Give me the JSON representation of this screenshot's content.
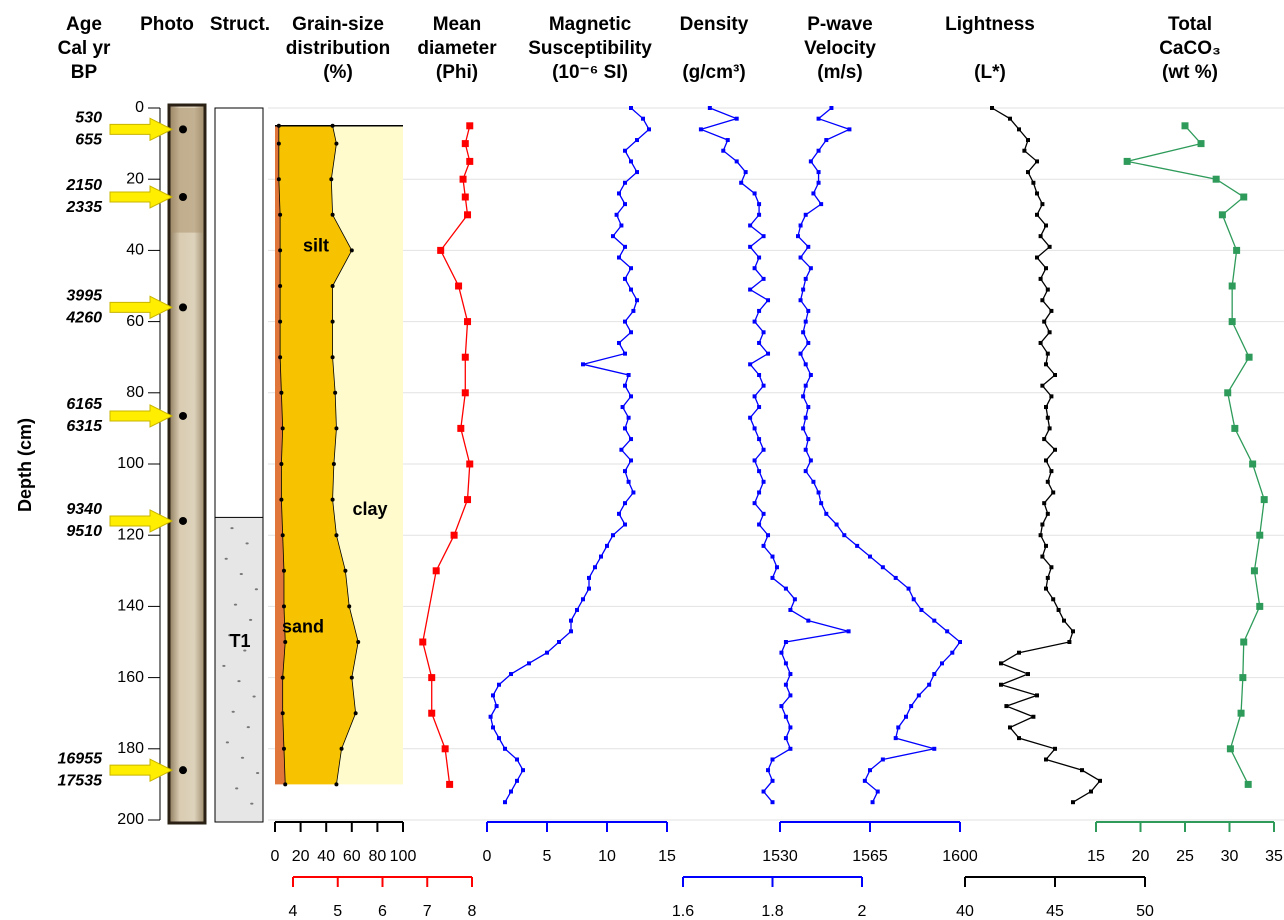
{
  "age_column": {
    "header": [
      "Age",
      "Cal yr",
      "BP"
    ],
    "labels": [
      [
        "530",
        "655"
      ],
      [
        "2150",
        "2335"
      ],
      [
        "3995",
        "4260"
      ],
      [
        "6165",
        "6315"
      ],
      [
        "9340",
        "9510"
      ],
      [
        "16955",
        "17535"
      ]
    ]
  },
  "photo": {
    "header": [
      "Photo"
    ]
  },
  "structure": {
    "header": [
      "Struct."
    ],
    "unit_label": "T1"
  },
  "depth": {
    "label": "Depth (cm)",
    "ylim": [
      0,
      200
    ],
    "yticks": [
      0,
      20,
      40,
      60,
      80,
      100,
      120,
      140,
      160,
      180,
      200
    ]
  },
  "chart_data": [
    {
      "type": "area",
      "header": [
        "Grain-size",
        "distribution",
        "(%)"
      ],
      "xlim": [
        0,
        100
      ],
      "xticks": [
        0,
        20,
        40,
        60,
        80,
        100
      ],
      "y": [
        5,
        10,
        20,
        30,
        40,
        50,
        60,
        70,
        80,
        90,
        100,
        110,
        120,
        130,
        140,
        150,
        160,
        170,
        180,
        190
      ],
      "series": [
        {
          "name": "sand",
          "color": "#e0763a",
          "values": [
            3,
            3,
            3,
            4,
            4,
            4,
            4,
            4,
            5,
            6,
            5,
            5,
            6,
            7,
            7,
            8,
            6,
            6,
            7,
            8
          ]
        },
        {
          "name": "silt",
          "color": "#f7c200",
          "values": [
            42,
            45,
            41,
            41,
            56,
            41,
            41,
            41,
            42,
            42,
            41,
            40,
            42,
            48,
            51,
            57,
            54,
            57,
            45,
            40
          ]
        }
      ],
      "remainder": {
        "name": "clay",
        "color": "#fffbcc"
      }
    },
    {
      "type": "line",
      "header": [
        "Mean",
        "diameter",
        "(Phi)"
      ],
      "color": "#ff0000",
      "marker": "big",
      "xlim": [
        4,
        8
      ],
      "xticks": [
        4,
        5,
        6,
        7,
        8
      ],
      "y": [
        5,
        10,
        15,
        20,
        25,
        30,
        40,
        50,
        60,
        70,
        80,
        90,
        100,
        110,
        120,
        130,
        150,
        160,
        170,
        180,
        190
      ],
      "values": [
        7.95,
        7.85,
        7.95,
        7.8,
        7.85,
        7.9,
        7.3,
        7.7,
        7.9,
        7.85,
        7.85,
        7.75,
        7.95,
        7.9,
        7.6,
        7.2,
        6.9,
        7.1,
        7.1,
        7.4,
        7.5
      ]
    },
    {
      "type": "line",
      "header": [
        "Magnetic",
        "Susceptibility",
        "(10⁻⁶ SI)"
      ],
      "color": "#0000ff",
      "marker": "small",
      "xlim": [
        0,
        15
      ],
      "xticks": [
        0,
        5,
        10,
        15
      ],
      "y": [
        0,
        3,
        6,
        9,
        12,
        15,
        18,
        21,
        24,
        27,
        30,
        33,
        36,
        39,
        42,
        45,
        48,
        51,
        54,
        57,
        60,
        63,
        66,
        69,
        72,
        75,
        78,
        81,
        84,
        87,
        90,
        93,
        96,
        99,
        102,
        105,
        108,
        111,
        114,
        117,
        120,
        123,
        126,
        129,
        132,
        135,
        138,
        141,
        144,
        147,
        150,
        153,
        156,
        159,
        162,
        165,
        168,
        171,
        174,
        177,
        180,
        183,
        186,
        189,
        192,
        195
      ],
      "values": [
        12,
        13,
        13.5,
        12.5,
        11.5,
        12,
        12.5,
        11.5,
        11,
        11.5,
        10.8,
        11.2,
        10.5,
        11.5,
        11,
        12,
        11.5,
        12,
        12.5,
        12.2,
        11.5,
        12,
        11,
        11.5,
        8,
        11.8,
        11.5,
        12,
        11.3,
        11.8,
        11.5,
        12,
        11.2,
        12,
        11.5,
        11.8,
        12.2,
        11.5,
        11,
        11.5,
        10.5,
        10,
        9.5,
        9,
        8.5,
        8.5,
        8,
        7.5,
        7,
        7,
        6,
        5,
        3.5,
        2,
        1,
        0.5,
        0.8,
        0.3,
        0.5,
        1,
        1.5,
        2.5,
        3,
        2.5,
        2,
        1.5
      ]
    },
    {
      "type": "line",
      "header": [
        "Density",
        "(g/cm³)"
      ],
      "color": "#0000ff",
      "marker": "small",
      "xlim": [
        1.6,
        2
      ],
      "xticks": [
        1.6,
        1.8,
        2
      ],
      "y": [
        0,
        3,
        6,
        9,
        12,
        15,
        18,
        21,
        24,
        27,
        30,
        33,
        36,
        39,
        42,
        45,
        48,
        51,
        54,
        57,
        60,
        63,
        66,
        69,
        72,
        75,
        78,
        81,
        84,
        87,
        90,
        93,
        96,
        99,
        102,
        105,
        108,
        111,
        114,
        117,
        120,
        123,
        126,
        129,
        132,
        135,
        138,
        141,
        144,
        147,
        150,
        153,
        156,
        159,
        162,
        165,
        168,
        171,
        174,
        177,
        180,
        183,
        186,
        189,
        192,
        195
      ],
      "values": [
        1.66,
        1.72,
        1.64,
        1.7,
        1.69,
        1.72,
        1.74,
        1.73,
        1.76,
        1.77,
        1.77,
        1.75,
        1.78,
        1.75,
        1.77,
        1.76,
        1.78,
        1.75,
        1.79,
        1.77,
        1.76,
        1.78,
        1.77,
        1.79,
        1.75,
        1.77,
        1.78,
        1.76,
        1.77,
        1.75,
        1.76,
        1.77,
        1.78,
        1.76,
        1.77,
        1.78,
        1.77,
        1.76,
        1.78,
        1.77,
        1.79,
        1.78,
        1.8,
        1.81,
        1.8,
        1.83,
        1.85,
        1.84,
        1.88,
        1.97,
        1.83,
        1.82,
        1.83,
        1.84,
        1.83,
        1.84,
        1.82,
        1.83,
        1.84,
        1.83,
        1.84,
        1.8,
        1.79,
        1.8,
        1.78,
        1.8
      ]
    },
    {
      "type": "line",
      "header": [
        "P-wave",
        "Velocity",
        "(m/s)"
      ],
      "color": "#0000ff",
      "marker": "small",
      "xlim": [
        1530,
        1600
      ],
      "xticks": [
        1530,
        1565,
        1600
      ],
      "y": [
        0,
        3,
        6,
        9,
        12,
        15,
        18,
        21,
        24,
        27,
        30,
        33,
        36,
        39,
        42,
        45,
        48,
        51,
        54,
        57,
        60,
        63,
        66,
        69,
        72,
        75,
        78,
        81,
        84,
        87,
        90,
        93,
        96,
        99,
        102,
        105,
        108,
        111,
        114,
        117,
        120,
        123,
        126,
        129,
        132,
        135,
        138,
        141,
        144,
        147,
        150,
        153,
        156,
        159,
        162,
        165,
        168,
        171,
        174,
        177,
        180,
        183,
        186,
        189,
        192,
        195
      ],
      "values": [
        1550,
        1545,
        1557,
        1548,
        1545,
        1542,
        1545,
        1545,
        1543,
        1546,
        1540,
        1538,
        1537,
        1541,
        1538,
        1542,
        1540,
        1539,
        1538,
        1541,
        1540,
        1539,
        1541,
        1538,
        1540,
        1542,
        1540,
        1539,
        1541,
        1540,
        1539,
        1541,
        1540,
        1542,
        1540,
        1543,
        1545,
        1546,
        1548,
        1552,
        1555,
        1560,
        1565,
        1570,
        1575,
        1580,
        1582,
        1585,
        1590,
        1595,
        1600,
        1597,
        1593,
        1590,
        1588,
        1584,
        1581,
        1579,
        1576,
        1575,
        1590,
        1570,
        1565,
        1563,
        1568,
        1566
      ]
    },
    {
      "type": "line",
      "header": [
        "Lightness",
        "(L*)"
      ],
      "color": "#000000",
      "marker": "small",
      "xlim": [
        40,
        50
      ],
      "xticks": [
        40,
        45,
        50
      ],
      "y": [
        0,
        3,
        6,
        9,
        12,
        15,
        18,
        21,
        24,
        27,
        30,
        33,
        36,
        39,
        42,
        45,
        48,
        51,
        54,
        57,
        60,
        63,
        66,
        69,
        72,
        75,
        78,
        81,
        84,
        87,
        90,
        93,
        96,
        99,
        102,
        105,
        108,
        111,
        114,
        117,
        120,
        123,
        126,
        129,
        132,
        135,
        138,
        141,
        144,
        147,
        150,
        153,
        156,
        159,
        162,
        165,
        168,
        171,
        174,
        177,
        180,
        183,
        186,
        189,
        192,
        195
      ],
      "values": [
        41.5,
        42.5,
        43,
        43.5,
        43.3,
        44,
        43.5,
        43.8,
        44,
        44.3,
        44,
        44.5,
        44.2,
        44.7,
        44,
        44.5,
        44.2,
        44.6,
        44.3,
        44.8,
        44.4,
        44.7,
        44.2,
        44.6,
        44.5,
        45,
        44.3,
        44.8,
        44.5,
        44.6,
        44.7,
        44.4,
        45,
        44.5,
        44.8,
        44.6,
        44.9,
        44.4,
        44.6,
        44.3,
        44.2,
        44.5,
        44.3,
        44.8,
        44.6,
        44.5,
        44.9,
        45.2,
        45.5,
        46,
        45.8,
        43,
        42,
        43.5,
        42,
        44,
        42.3,
        43.8,
        42.5,
        43,
        45,
        44.5,
        46.5,
        47.5,
        47,
        46
      ]
    },
    {
      "type": "line",
      "header": [
        "Total",
        "CaCO₃",
        "(wt %)"
      ],
      "color": "#2e9b5a",
      "marker": "big",
      "xlim": [
        15,
        35
      ],
      "xticks": [
        15,
        20,
        25,
        30,
        35
      ],
      "y": [
        5,
        10,
        15,
        20,
        25,
        30,
        40,
        50,
        60,
        70,
        80,
        90,
        100,
        110,
        120,
        130,
        140,
        150,
        160,
        170,
        180,
        190
      ],
      "values": [
        25,
        26.8,
        18.5,
        28.5,
        31.6,
        29.2,
        30.8,
        30.3,
        30.3,
        32.2,
        29.8,
        30.6,
        32.6,
        33.9,
        33.4,
        32.8,
        33.4,
        31.6,
        31.5,
        31.3,
        30.1,
        32.1
      ]
    }
  ]
}
